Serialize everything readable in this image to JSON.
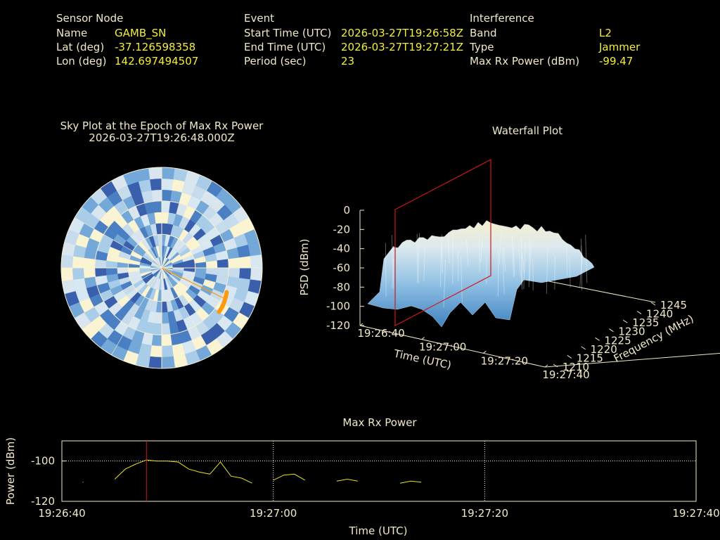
{
  "sensor": {
    "heading": "Sensor Node",
    "name_label": "Name",
    "name_value": "GAMB_SN",
    "lat_label": "Lat (deg)",
    "lat_value": "-37.126598358",
    "lon_label": "Lon (deg)",
    "lon_value": "142.697494507"
  },
  "event": {
    "heading": "Event",
    "start_label": "Start Time (UTC)",
    "start_value": "2026-03-27T19:26:58Z",
    "end_label": "End Time (UTC)",
    "end_value": "2026-03-27T19:27:21Z",
    "period_label": "Period (sec)",
    "period_value": "23"
  },
  "interference": {
    "heading": "Interference",
    "band_label": "Band",
    "band_value": "L2",
    "type_label": "Type",
    "type_value": "Jammer",
    "power_label": "Max Rx Power (dBm)",
    "power_value": "-99.47"
  },
  "colors": {
    "label": "#f0e8c8",
    "value": "#f2ee3a",
    "trace": "#e8e020",
    "marker": "#d01818",
    "track": "#ff9a10"
  },
  "chart_data": [
    {
      "type": "heatmap",
      "title": "Sky Plot at the Epoch of Max Rx Power",
      "subtitle": "2026-03-27T19:26:48.000Z",
      "rings": 3,
      "spokes": 12,
      "cell_rings": 9,
      "cell_sectors": 48,
      "track_endpoint": {
        "azimuth_deg": 116,
        "elevation_fraction": 0.68
      }
    },
    {
      "type": "area",
      "title": "Waterfall Plot",
      "zlabel": "PSD (dBm)",
      "xlabel": "Time (UTC)",
      "ylabel": "Frequency (MHz)",
      "z_ticks": [
        "0",
        "-20",
        "-40",
        "-60",
        "-80",
        "-100",
        "-120"
      ],
      "time_ticks": [
        "19:26:40",
        "19:27:00",
        "19:27:20",
        "19:27:40"
      ],
      "freq_ticks": [
        "1210",
        "1215",
        "1220",
        "1225",
        "1230",
        "1235",
        "1240",
        "1245"
      ],
      "zlim": [
        -120,
        0
      ],
      "marker_time": "19:26:48"
    },
    {
      "type": "line",
      "title": "Max Rx Power",
      "xlabel": "Time (UTC)",
      "ylabel": "Power (dBm)",
      "x_ticks": [
        "19:26:40",
        "19:27:00",
        "19:27:20",
        "19:27:40"
      ],
      "y_ticks": [
        "-100",
        "-120"
      ],
      "xlim": [
        0,
        60
      ],
      "ylim": [
        -120,
        -90
      ],
      "marker_x": 8,
      "series": [
        {
          "x": [
            2
          ],
          "y": [
            -110.5
          ]
        },
        {
          "x": [
            5,
            6,
            7,
            8,
            9,
            10,
            11,
            12,
            13,
            14,
            15,
            16,
            17,
            18
          ],
          "y": [
            -109,
            -104,
            -101.5,
            -99.5,
            -100,
            -100,
            -100.5,
            -104,
            -105.5,
            -106.5,
            -100.5,
            -107.5,
            -108.5,
            -111
          ]
        },
        {
          "x": [
            20,
            21,
            22,
            23
          ],
          "y": [
            -109.5,
            -107,
            -106.5,
            -109.5
          ]
        },
        {
          "x": [
            26,
            27,
            28
          ],
          "y": [
            -110,
            -109,
            -110
          ]
        },
        {
          "x": [
            32,
            33,
            34
          ],
          "y": [
            -111,
            -110,
            -110.5
          ]
        }
      ]
    }
  ]
}
